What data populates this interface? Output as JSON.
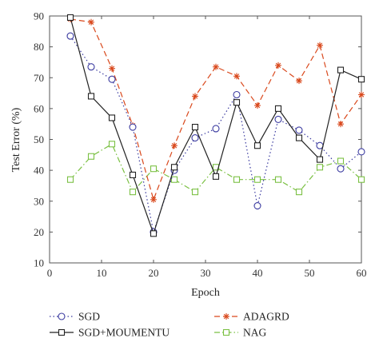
{
  "chart_data": {
    "type": "line",
    "xlabel": "Epoch",
    "ylabel": "Test Error (%)",
    "xlim": [
      0,
      60
    ],
    "ylim": [
      10,
      90
    ],
    "xticks": [
      0,
      10,
      20,
      30,
      40,
      50,
      60
    ],
    "yticks": [
      10,
      20,
      30,
      40,
      50,
      60,
      70,
      80,
      90
    ],
    "x": [
      4,
      8,
      12,
      16,
      20,
      24,
      28,
      32,
      36,
      40,
      44,
      48,
      52,
      56,
      60
    ],
    "grid": false,
    "legend_position": "bottom",
    "series": [
      {
        "name": "SGD",
        "color": "#3b3ba0",
        "line_style": "dotted",
        "marker": "circle",
        "values": [
          83.5,
          73.5,
          69.5,
          54,
          20,
          40,
          50.5,
          53.5,
          64.5,
          28.5,
          56.5,
          53,
          48,
          40.5,
          46
        ]
      },
      {
        "name": "ADAGRD",
        "color": "#d9481c",
        "line_style": "dashed",
        "marker": "star",
        "values": [
          89,
          88,
          73,
          54.5,
          30.5,
          48,
          64,
          73.5,
          70.5,
          61,
          74,
          69,
          80.5,
          55,
          64.5
        ]
      },
      {
        "name": "SGD+MOUMENTU",
        "color": "#222222",
        "line_style": "solid",
        "marker": "square",
        "values": [
          89.5,
          64,
          57,
          38.5,
          19.5,
          41,
          54,
          38,
          62,
          48,
          60,
          50.5,
          43.5,
          72.5,
          69.5
        ]
      },
      {
        "name": "NAG",
        "color": "#7bc043",
        "line_style": "dashdot",
        "marker": "square",
        "values": [
          37,
          44.5,
          48.5,
          33,
          40.5,
          37,
          33,
          41,
          37,
          37,
          37,
          33,
          41,
          43,
          37
        ]
      }
    ]
  }
}
